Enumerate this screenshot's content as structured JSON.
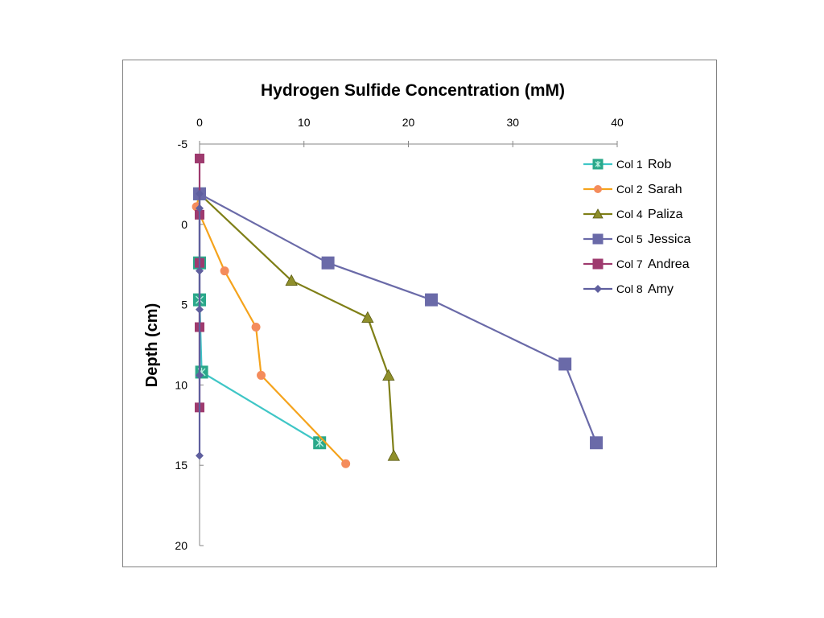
{
  "chart_data": {
    "type": "line",
    "title": "Hydrogen Sulfide Concentration (mM)",
    "xlabel": "",
    "ylabel": "Depth (cm)",
    "xlim": [
      0,
      40
    ],
    "ylim": [
      -5,
      20
    ],
    "x_ticks": [
      0,
      10,
      20,
      30,
      40
    ],
    "y_ticks": [
      -5,
      0,
      5,
      10,
      15,
      20
    ],
    "x_axis_position": "top",
    "y_axis_reversed": true,
    "grid": false,
    "legend_position": "right",
    "series": [
      {
        "name": "Col 1",
        "label": "Rob",
        "color": "#3fc6c6",
        "marker": "square-x",
        "marker_color": "#2aa88a",
        "points": [
          [
            0,
            -1.9
          ],
          [
            0,
            2.4
          ],
          [
            0,
            4.7
          ],
          [
            0.2,
            9.2
          ],
          [
            11.5,
            13.6
          ]
        ]
      },
      {
        "name": "Col 2",
        "label": "Sarah",
        "color": "#f5a31c",
        "marker": "circle",
        "marker_color": "#f48c5c",
        "points": [
          [
            0,
            -1.9
          ],
          [
            -0.3,
            -1.1
          ],
          [
            2.4,
            2.9
          ],
          [
            5.4,
            6.4
          ],
          [
            5.9,
            9.4
          ],
          [
            14.0,
            14.9
          ]
        ]
      },
      {
        "name": "Col 4",
        "label": "Paliza",
        "color": "#7f7f17",
        "marker": "triangle",
        "marker_color": "#8f8f2b",
        "points": [
          [
            0,
            -1.9
          ],
          [
            8.8,
            3.5
          ],
          [
            16.1,
            5.8
          ],
          [
            18.1,
            9.4
          ],
          [
            18.6,
            14.4
          ]
        ]
      },
      {
        "name": "Col 5",
        "label": "Jessica",
        "color": "#6a6aa8",
        "marker": "square",
        "marker_color": "#6a6aa8",
        "points": [
          [
            0,
            -1.9
          ],
          [
            12.3,
            2.4
          ],
          [
            22.2,
            4.7
          ],
          [
            35.0,
            8.7
          ],
          [
            38.0,
            13.6
          ]
        ]
      },
      {
        "name": "Col 7",
        "label": "Andrea",
        "color": "#9e3a6e",
        "marker": "square",
        "marker_color": "#9e3a6e",
        "points": [
          [
            0,
            -4.1
          ],
          [
            0,
            -0.6
          ],
          [
            0,
            2.4
          ],
          [
            0,
            6.4
          ],
          [
            0,
            11.4
          ]
        ]
      },
      {
        "name": "Col 8",
        "label": "Amy",
        "color": "#5f5f9e",
        "marker": "diamond",
        "marker_color": "#5f5f9e",
        "points": [
          [
            0,
            -1.9
          ],
          [
            0,
            -1.0
          ],
          [
            0,
            2.9
          ],
          [
            0,
            5.3
          ],
          [
            0,
            9.4
          ],
          [
            0,
            14.4
          ]
        ]
      }
    ]
  }
}
